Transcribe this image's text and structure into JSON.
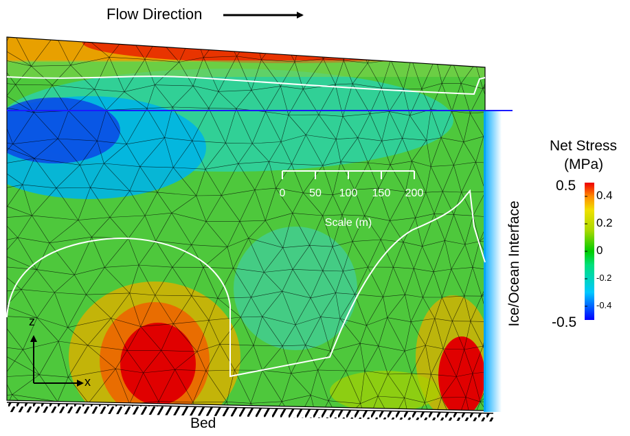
{
  "labels": {
    "flow_direction": "Flow Direction",
    "bed": "Bed",
    "interface": "Ice/Ocean Interface"
  },
  "colorbar": {
    "title_line1": "Net Stress",
    "title_line2": "(MPa)",
    "max_label": "0.5",
    "min_label": "-0.5",
    "ticks": [
      "0.4",
      "0.2",
      "0",
      "-0.2",
      "-0.4"
    ],
    "stops": [
      "#0000ff",
      "#00c8ff",
      "#00e07c",
      "#00cc00",
      "#a8d800",
      "#f0e000",
      "#ff8c00",
      "#ee0000"
    ]
  },
  "scale_bar": {
    "ticks": [
      "0",
      "50",
      "100",
      "150",
      "200"
    ],
    "title": "Scale (m)"
  },
  "axes": {
    "z": "z",
    "x": "x"
  },
  "colors": {
    "contour_line": "#ffffff",
    "waterline": "#1a1aff",
    "mesh": "#000000"
  }
}
